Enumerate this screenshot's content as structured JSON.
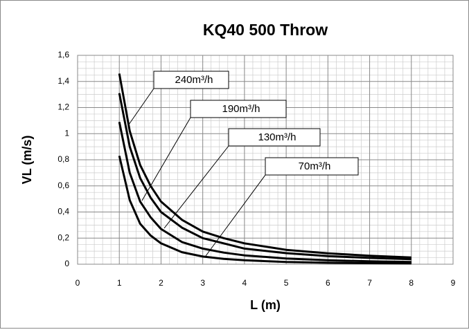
{
  "chart_data": {
    "type": "line",
    "title": "KQ40 500 Throw",
    "x_label": "L (m)",
    "y_label": "VL (m/s)",
    "x": [
      1,
      1.25,
      1.5,
      1.75,
      2,
      2.5,
      3,
      3.5,
      4,
      5,
      6,
      7,
      8
    ],
    "series": [
      {
        "name": "240m³/h",
        "color": "#000000",
        "values": [
          1.46,
          1.02,
          0.76,
          0.6,
          0.48,
          0.34,
          0.25,
          0.2,
          0.16,
          0.11,
          0.083,
          0.065,
          0.052
        ]
      },
      {
        "name": "190m³/h",
        "color": "#000000",
        "values": [
          1.31,
          0.9,
          0.66,
          0.51,
          0.4,
          0.28,
          0.2,
          0.16,
          0.12,
          0.085,
          0.062,
          0.048,
          0.038
        ]
      },
      {
        "name": "130m³/h",
        "color": "#000000",
        "values": [
          1.09,
          0.7,
          0.48,
          0.36,
          0.27,
          0.17,
          0.12,
          0.089,
          0.068,
          0.044,
          0.03,
          0.022,
          0.017
        ]
      },
      {
        "name": "70m³/h",
        "color": "#000000",
        "values": [
          0.83,
          0.49,
          0.31,
          0.22,
          0.16,
          0.092,
          0.059,
          0.041,
          0.03,
          0.017,
          0.011,
          0.008,
          0.006
        ]
      }
    ],
    "xlim": [
      0,
      9
    ],
    "xticks": [
      0,
      1,
      2,
      3,
      4,
      5,
      6,
      7,
      8,
      9
    ],
    "ylim": [
      0,
      1.6
    ],
    "yticks": [
      0,
      {
        "value": 0.2,
        "label": "0,2"
      },
      {
        "value": 0.4,
        "label": "0,4"
      },
      {
        "value": 0.6,
        "label": "0,6"
      },
      {
        "value": 0.8,
        "label": "0,8"
      },
      1,
      {
        "value": 1.2,
        "label": "1,2"
      },
      {
        "value": 1.4,
        "label": "1,4"
      },
      {
        "value": 1.6,
        "label": "1,6"
      }
    ],
    "grid": true
  }
}
